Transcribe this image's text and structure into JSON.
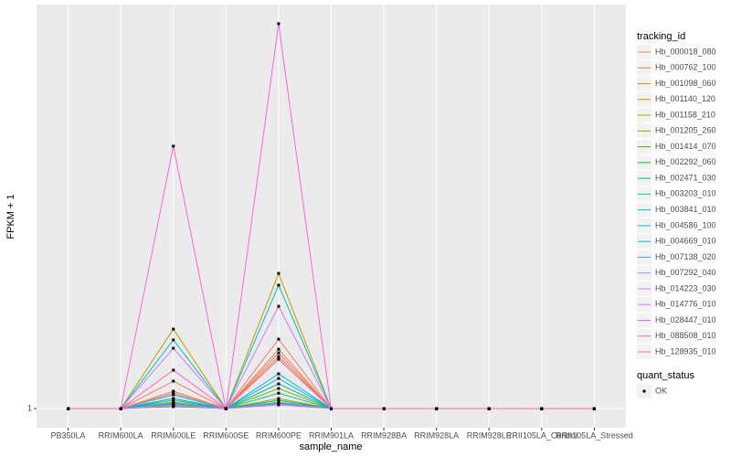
{
  "chart_data": {
    "type": "line",
    "x_label": "sample_name",
    "y_label": "FPKM + 1",
    "categories": [
      "PB350LA",
      "RRIM600LA",
      "RRIM600LE",
      "RRIM600SE",
      "RRIM600PE",
      "RRIM901LA",
      "RRIM928BA",
      "RRIM928LA",
      "RRIM928LE",
      "RRII105LA_Control",
      "RRII105LA_Stressed"
    ],
    "ylim": [
      -8.9,
      209.9
    ],
    "yticks": [
      1
    ],
    "grid": true,
    "legend_title": "tracking_id",
    "legend_position": "right",
    "point_legend": {
      "title": "quant_status",
      "entries": [
        "OK"
      ]
    },
    "series": [
      {
        "name": "Hb_000018_080",
        "color": "#F8766D",
        "values": [
          1,
          1,
          15.2,
          1,
          36.9,
          1,
          1,
          1,
          1,
          1,
          1
        ]
      },
      {
        "name": "Hb_000762_100",
        "color": "#EA8331",
        "values": [
          1,
          1,
          10.0,
          1,
          31.7,
          1,
          1,
          1,
          1,
          1,
          1
        ]
      },
      {
        "name": "Hb_001098_060",
        "color": "#D89000",
        "values": [
          1,
          1,
          6.2,
          1,
          27.9,
          1,
          1,
          1,
          1,
          1,
          1
        ]
      },
      {
        "name": "Hb_001140_120",
        "color": "#C09B00",
        "values": [
          1,
          1,
          42.1,
          1,
          70.9,
          1,
          1,
          1,
          1,
          1,
          1
        ]
      },
      {
        "name": "Hb_001158_210",
        "color": "#A3A500",
        "values": [
          1,
          1,
          4.3,
          1,
          6.2,
          1,
          1,
          1,
          1,
          1,
          1
        ]
      },
      {
        "name": "Hb_001205_260",
        "color": "#7CAE00",
        "values": [
          1,
          1,
          2.9,
          1,
          11.4,
          1,
          1,
          1,
          1,
          1,
          1
        ]
      },
      {
        "name": "Hb_001414_070",
        "color": "#39B600",
        "values": [
          1,
          1,
          2.0,
          1,
          3.8,
          1,
          1,
          1,
          1,
          1,
          1
        ]
      },
      {
        "name": "Hb_002292_060",
        "color": "#00BB4E",
        "values": [
          1,
          1,
          2.4,
          1,
          5.3,
          1,
          1,
          1,
          1,
          1,
          1
        ]
      },
      {
        "name": "Hb_002471_030",
        "color": "#00BF7D",
        "values": [
          1,
          1,
          5.3,
          1,
          13.8,
          1,
          1,
          1,
          1,
          1,
          1
        ]
      },
      {
        "name": "Hb_003203_010",
        "color": "#00C1A3",
        "values": [
          1,
          1,
          3.8,
          1,
          9.0,
          1,
          1,
          1,
          1,
          1,
          1
        ]
      },
      {
        "name": "Hb_003841_010",
        "color": "#00BFC4",
        "values": [
          1,
          1,
          36.5,
          1,
          64.8,
          1,
          1,
          1,
          1,
          1,
          1
        ]
      },
      {
        "name": "Hb_004586_100",
        "color": "#00BAE0",
        "values": [
          1,
          1,
          8.1,
          1,
          19.0,
          1,
          1,
          1,
          1,
          1,
          1
        ]
      },
      {
        "name": "Hb_004669_010",
        "color": "#00B0F6",
        "values": [
          1,
          1,
          6.2,
          1,
          16.6,
          1,
          1,
          1,
          1,
          1,
          1
        ]
      },
      {
        "name": "Hb_007138_020",
        "color": "#35A2FF",
        "values": [
          1,
          1,
          3.4,
          1,
          4.3,
          1,
          1,
          1,
          1,
          1,
          1
        ]
      },
      {
        "name": "Hb_007292_040",
        "color": "#9590FF",
        "values": [
          1,
          1,
          2.9,
          1,
          3.4,
          1,
          1,
          1,
          1,
          1,
          1
        ]
      },
      {
        "name": "Hb_014223_030",
        "color": "#C77CFF",
        "values": [
          1,
          1,
          32.2,
          1,
          53.9,
          1,
          1,
          1,
          1,
          1,
          1
        ]
      },
      {
        "name": "Hb_014776_010",
        "color": "#E76BF3",
        "values": [
          1,
          1,
          2.4,
          1,
          2.9,
          1,
          1,
          1,
          1,
          1,
          1
        ]
      },
      {
        "name": "Hb_028447_010",
        "color": "#FA62DB",
        "values": [
          1,
          1,
          136.7,
          1,
          200.0,
          1,
          1,
          1,
          1,
          1,
          1
        ]
      },
      {
        "name": "Hb_088508_010",
        "color": "#FF62BC",
        "values": [
          1,
          1,
          20.9,
          1,
          26.5,
          1,
          1,
          1,
          1,
          1,
          1
        ]
      },
      {
        "name": "Hb_128935_010",
        "color": "#FF6C91",
        "values": [
          1,
          1,
          9.0,
          1,
          29.8,
          1,
          1,
          1,
          1,
          1,
          1
        ]
      }
    ]
  }
}
